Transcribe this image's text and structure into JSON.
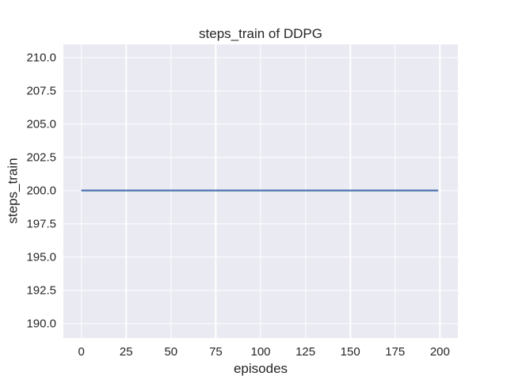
{
  "chart_data": {
    "type": "line",
    "title": "steps_train of DDPG",
    "xlabel": "episodes",
    "ylabel": "steps_train",
    "xlim": [
      -10,
      210
    ],
    "ylim": [
      188.9,
      211.0
    ],
    "xticks": [
      0,
      25,
      50,
      75,
      100,
      125,
      150,
      175,
      200
    ],
    "xtick_labels": [
      "0",
      "25",
      "50",
      "75",
      "100",
      "125",
      "150",
      "175",
      "200"
    ],
    "yticks": [
      190.0,
      192.5,
      195.0,
      197.5,
      200.0,
      202.5,
      205.0,
      207.5,
      210.0
    ],
    "ytick_labels": [
      "190.0",
      "192.5",
      "195.0",
      "197.5",
      "200.0",
      "202.5",
      "205.0",
      "207.5",
      "210.0"
    ],
    "grid": true,
    "grid_on": "both",
    "legend_position": "none",
    "plot_background": "#eaeaf2",
    "grid_color": "#ffffff",
    "text_color": "#262626",
    "series": [
      {
        "name": "steps_train",
        "color": "#4c72b0",
        "linewidth": 2.2,
        "x": [
          0,
          199
        ],
        "y": [
          200,
          200
        ]
      }
    ]
  }
}
